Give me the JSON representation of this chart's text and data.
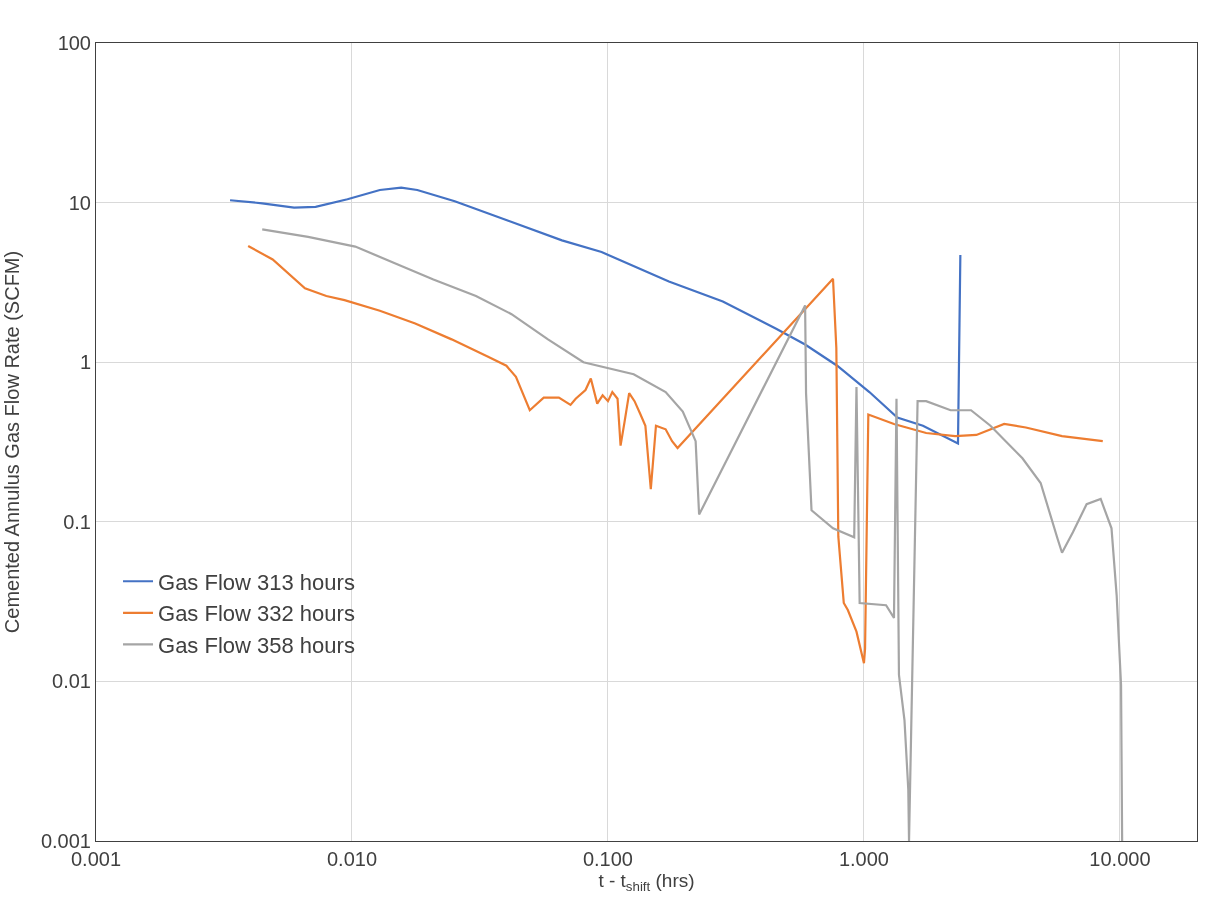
{
  "chart_data": {
    "type": "line",
    "xlabel": "t - t$_{shift}$ (hrs)",
    "ylabel": "Cemented Annulus Gas Flow Rate (SCFM)",
    "log": "xy",
    "grid": true,
    "legend": "bottom left",
    "marker": "none",
    "line_style": "solid",
    "xlim": [
      0.001,
      20
    ],
    "ylim": [
      0.001,
      100
    ],
    "xticks": [
      {
        "value": 0.001,
        "label": "0.001"
      },
      {
        "value": 0.01,
        "label": "0.010"
      },
      {
        "value": 0.1,
        "label": "0.100"
      },
      {
        "value": 1,
        "label": "1.000"
      },
      {
        "value": 10,
        "label": "10.000"
      }
    ],
    "yticks": [
      0.001,
      0.01,
      0.1,
      1,
      10,
      100
    ],
    "series": [
      {
        "name": "Gas Flow 313 hours",
        "color": "#4472c4",
        "x": [
          0.00334,
          0.00446,
          0.00594,
          0.00721,
          0.0096,
          0.01285,
          0.01557,
          0.01799,
          0.0252,
          0.0408,
          0.0661,
          0.0944,
          0.173,
          0.281,
          0.454,
          0.589,
          0.786,
          1.05,
          1.35,
          1.7,
          2.33,
          2.38
        ],
        "values": [
          10.35,
          9.9,
          9.3,
          9.4,
          10.5,
          12.0,
          12.4,
          12.0,
          10.2,
          7.7,
          5.8,
          4.9,
          3.2,
          2.4,
          1.62,
          1.29,
          0.95,
          0.65,
          0.45,
          0.4,
          0.31,
          4.7
        ]
      },
      {
        "name": "Gas Flow 332 hours",
        "color": "#ed7d31",
        "x": [
          0.00393,
          0.0049,
          0.00655,
          0.00794,
          0.00935,
          0.01285,
          0.01766,
          0.0245,
          0.0337,
          0.0401,
          0.0437,
          0.0495,
          0.0561,
          0.0643,
          0.0714,
          0.0748,
          0.0817,
          0.0857,
          0.0908,
          0.0953,
          0.1,
          0.104,
          0.109,
          0.112,
          0.116,
          0.121,
          0.127,
          0.134,
          0.14,
          0.147,
          0.154,
          0.168,
          0.178,
          0.187,
          0.757,
          0.78,
          0.794,
          0.834,
          0.865,
          0.935,
          1.0,
          1.01,
          1.04,
          1.31,
          1.75,
          2.27,
          2.75,
          3.53,
          4.29,
          5.94,
          8.57
        ],
        "values": [
          5.35,
          4.4,
          2.9,
          2.6,
          2.45,
          2.1,
          1.75,
          1.39,
          1.09,
          0.95,
          0.81,
          0.5,
          0.6,
          0.6,
          0.54,
          0.59,
          0.67,
          0.79,
          0.55,
          0.62,
          0.57,
          0.65,
          0.59,
          0.3,
          0.42,
          0.64,
          0.57,
          0.47,
          0.4,
          0.16,
          0.4,
          0.38,
          0.32,
          0.29,
          3.33,
          1.23,
          0.081,
          0.031,
          0.028,
          0.0205,
          0.013,
          0.016,
          0.47,
          0.41,
          0.36,
          0.344,
          0.35,
          0.41,
          0.39,
          0.344,
          0.32
        ]
      },
      {
        "name": "Gas Flow 358 hours",
        "color": "#a5a5a5",
        "x": [
          0.00446,
          0.00674,
          0.0103,
          0.0151,
          0.0208,
          0.0305,
          0.042,
          0.0583,
          0.0802,
          0.126,
          0.168,
          0.196,
          0.22,
          0.227,
          0.589,
          0.594,
          0.624,
          0.757,
          0.916,
          0.935,
          0.962,
          1.22,
          1.31,
          1.34,
          1.37,
          1.44,
          1.49,
          1.5,
          1.62,
          1.75,
          2.18,
          2.62,
          3.12,
          4.16,
          4.9,
          5.71,
          5.94,
          6.55,
          7.41,
          8.41,
          9.27,
          9.71,
          10.1,
          10.2
        ],
        "values": [
          6.8,
          6.1,
          5.3,
          4.1,
          3.3,
          2.6,
          2.0,
          1.39,
          1.0,
          0.84,
          0.65,
          0.49,
          0.32,
          0.111,
          2.27,
          0.64,
          0.118,
          0.091,
          0.08,
          0.7,
          0.031,
          0.03,
          0.025,
          0.59,
          0.011,
          0.0057,
          0.0021,
          0.001,
          0.57,
          0.57,
          0.5,
          0.5,
          0.4,
          0.25,
          0.175,
          0.078,
          0.064,
          0.086,
          0.129,
          0.139,
          0.091,
          0.0345,
          0.0095,
          0.001
        ]
      }
    ]
  }
}
